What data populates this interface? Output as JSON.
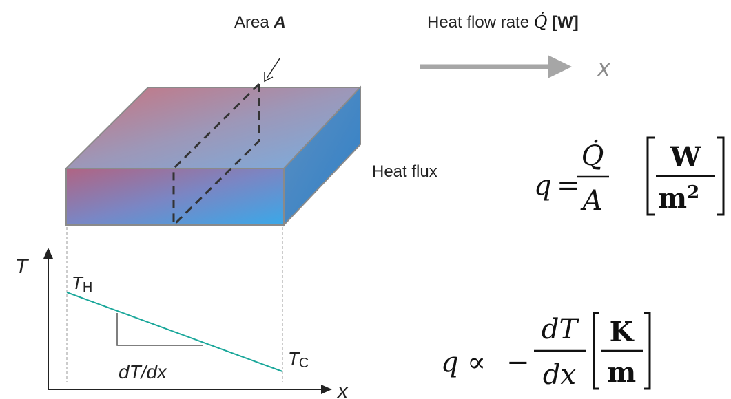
{
  "area_label": {
    "text": "Area",
    "symbol": "A"
  },
  "heat_flow": {
    "text": "Heat flow rate",
    "symbol": "Q̇",
    "unit": "[W]"
  },
  "direction": "x",
  "heat_flux": "Heat flux",
  "eq1": {
    "lhs": "q",
    "op": "=",
    "num": "Q̇",
    "den": "A",
    "unit_num": "W",
    "unit_den": "m",
    "unit_exp": "2"
  },
  "graph": {
    "y_axis": "T",
    "x_axis": "x",
    "hot": {
      "symbol": "T",
      "sub": "H"
    },
    "cold": {
      "symbol": "T",
      "sub": "C"
    },
    "slope": "dT/dx"
  },
  "eq2": {
    "lhs": "q",
    "op": "∝",
    "sign": "−",
    "num": "dT",
    "den": "dx",
    "unit_num": "K",
    "unit_den": "m"
  }
}
